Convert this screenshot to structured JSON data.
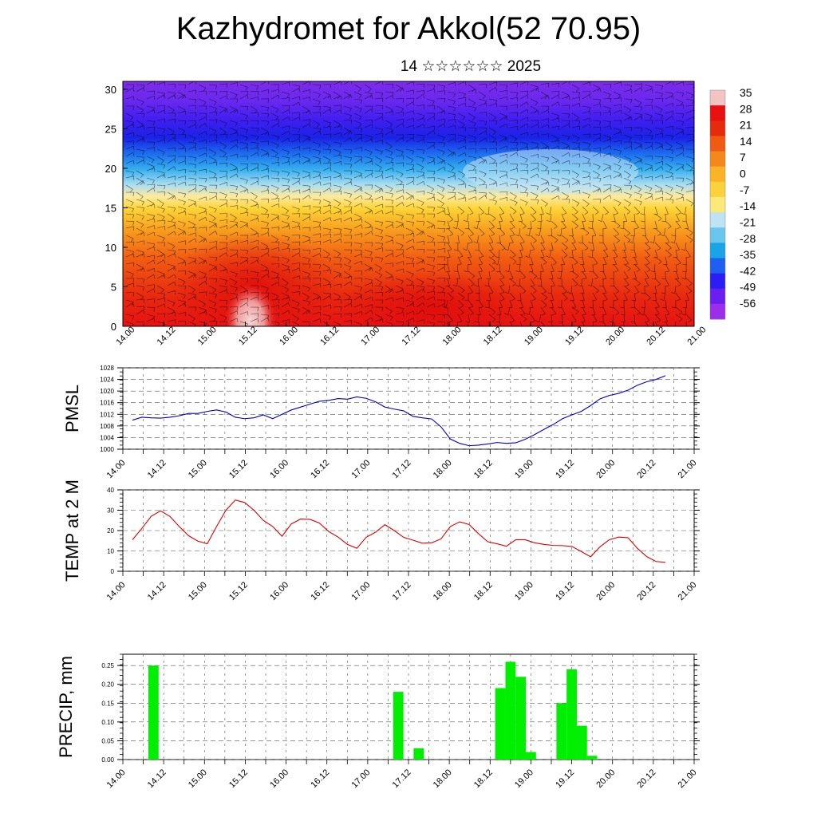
{
  "title": "Kazhydromet for Akkol(52 70.95)",
  "subtitle": "14 ☆☆☆☆☆☆ 2025",
  "chart_data": [
    {
      "type": "heatmap",
      "description_of_content": "vertical cross-section of temperature with wind barbs",
      "x_tick_labels": [
        "14.00",
        "14.12",
        "15.00",
        "15.12",
        "16.00",
        "16.12",
        "17.00",
        "17.12",
        "18.00",
        "18.12",
        "19.00",
        "19.12",
        "20.00",
        "20.12",
        "21.00"
      ],
      "y_tick_labels": [
        "0",
        "5",
        "10",
        "15",
        "20",
        "25",
        "30"
      ],
      "ylim": [
        0,
        31
      ],
      "colorbar_labels": [
        "35",
        "28",
        "21",
        "14",
        "7",
        "0",
        "-7",
        "-14",
        "-21",
        "-28",
        "-35",
        "-42",
        "-49",
        "-56"
      ],
      "colorbar_colors": [
        "#f2c4c4",
        "#e81010",
        "#e62a0c",
        "#f05a12",
        "#f5881a",
        "#fbb427",
        "#fcd23c",
        "#fde97a",
        "#bfe3f2",
        "#69c6ef",
        "#1aa4e8",
        "#1f5ff0",
        "#2a1ef5",
        "#6a1ff0",
        "#9b2ee8"
      ]
    },
    {
      "type": "line",
      "ylabel": "PMSL",
      "ylim": [
        1000,
        1028
      ],
      "y_tick_labels": [
        "1000",
        "1004",
        "1008",
        "1012",
        "1016",
        "1020",
        "1024",
        "1028"
      ],
      "x_tick_labels": [
        "14.00",
        "14.12",
        "15.00",
        "15.12",
        "16.00",
        "16.12",
        "17.00",
        "17.12",
        "18.00",
        "18.12",
        "19.00",
        "19.12",
        "20.00",
        "20.12",
        "21.00"
      ],
      "color": "#0000cc",
      "values": [
        1010,
        1011,
        1010.8,
        1010.7,
        1011,
        1011.5,
        1012.3,
        1012.3,
        1013,
        1013.5,
        1012.8,
        1011,
        1010.5,
        1010.8,
        1011.8,
        1010.5,
        1012,
        1013.5,
        1014.5,
        1015.5,
        1016.5,
        1016.8,
        1017.4,
        1017.2,
        1018,
        1017.5,
        1016.3,
        1014.5,
        1013.8,
        1013.2,
        1011.3,
        1010.8,
        1010.4,
        1007.7,
        1003.5,
        1002,
        1001.2,
        1001.4,
        1001.8,
        1002.3,
        1002,
        1002.2,
        1003.4,
        1005,
        1006.8,
        1008.5,
        1010.5,
        1011.8,
        1013,
        1015,
        1017.3,
        1018.5,
        1019.2,
        1020.3,
        1022,
        1023.2,
        1024,
        1025.3
      ]
    },
    {
      "type": "line",
      "ylabel": "TEMP at 2 M",
      "ylim": [
        0,
        40
      ],
      "y_tick_labels": [
        "0",
        "10",
        "20",
        "30",
        "40"
      ],
      "x_tick_labels": [
        "14.00",
        "14.12",
        "15.00",
        "15.12",
        "16.00",
        "16.12",
        "17.00",
        "17.12",
        "18.00",
        "18.12",
        "19.00",
        "19.12",
        "20.00",
        "20.12",
        "21.00"
      ],
      "color": "#dd0000",
      "values": [
        15.5,
        21,
        27,
        29.7,
        27,
        22,
        17.5,
        14.8,
        13.5,
        22,
        30,
        35,
        33.8,
        30,
        25,
        22,
        17.2,
        23.3,
        25.7,
        25.5,
        23.7,
        19.5,
        16.8,
        13.2,
        11.3,
        16.7,
        19.2,
        22.9,
        20,
        16.7,
        15.3,
        13.8,
        14,
        15.9,
        22,
        24.3,
        23,
        18.5,
        14.5,
        13.5,
        12.3,
        15.5,
        15.5,
        14,
        13.2,
        12.7,
        12.6,
        12.2,
        9.7,
        7.1,
        12,
        15.5,
        16.8,
        16.5,
        11.3,
        7.2,
        4.8,
        4.4
      ]
    },
    {
      "type": "bar",
      "ylabel": "PRECIP, mm",
      "ylim": [
        0,
        0.28
      ],
      "y_tick_labels": [
        "0.00",
        "0.05",
        "0.10",
        "0.15",
        "0.20",
        "0.25"
      ],
      "x_tick_labels": [
        "14.00",
        "14.12",
        "15.00",
        "15.12",
        "16.00",
        "16.12",
        "17.00",
        "17.12",
        "18.00",
        "18.12",
        "19.00",
        "19.12",
        "20.00",
        "20.12",
        "21.00"
      ],
      "color": "#00ee00",
      "bars": [
        {
          "x": 14.375,
          "value": 0.25
        },
        {
          "x": 17.375,
          "value": 0.18
        },
        {
          "x": 17.625,
          "value": 0.03
        },
        {
          "x": 18.625,
          "value": 0.19
        },
        {
          "x": 18.75,
          "value": 0.26
        },
        {
          "x": 18.875,
          "value": 0.22
        },
        {
          "x": 19.0,
          "value": 0.02
        },
        {
          "x": 19.375,
          "value": 0.15
        },
        {
          "x": 19.5,
          "value": 0.24
        },
        {
          "x": 19.625,
          "value": 0.09
        },
        {
          "x": 19.75,
          "value": 0.01
        }
      ]
    }
  ]
}
